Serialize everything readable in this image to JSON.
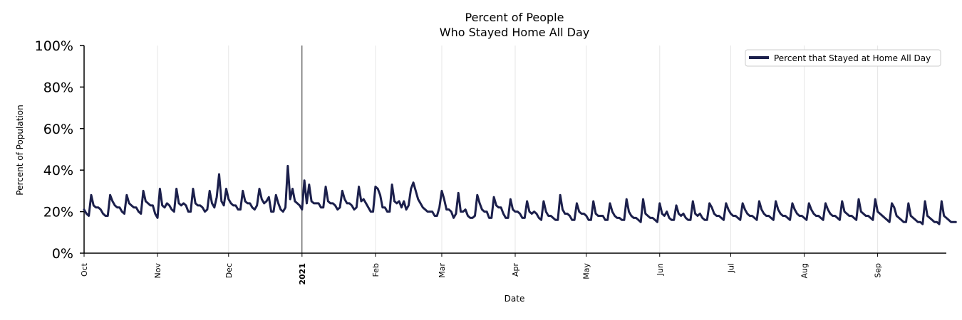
{
  "chart_data": {
    "type": "line",
    "title": [
      "Percent of People",
      "Who Stayed Home All Day"
    ],
    "xlabel": "Date",
    "ylabel": "Percent of Population",
    "ylim": [
      0,
      100
    ],
    "yticks": [
      0,
      20,
      40,
      60,
      80,
      100
    ],
    "ytick_labels": [
      "0%",
      "20%",
      "40%",
      "60%",
      "80%",
      "100%"
    ],
    "xlim_days": [
      0,
      364
    ],
    "xticks": [
      {
        "label": "Oct",
        "day": 0
      },
      {
        "label": "Nov",
        "day": 31
      },
      {
        "label": "Dec",
        "day": 61
      },
      {
        "label": "2021",
        "day": 92,
        "bold": true
      },
      {
        "label": "Feb",
        "day": 123
      },
      {
        "label": "Mar",
        "day": 151
      },
      {
        "label": "Apr",
        "day": 182
      },
      {
        "label": "May",
        "day": 212
      },
      {
        "label": "Jun",
        "day": 243
      },
      {
        "label": "Jul",
        "day": 273
      },
      {
        "label": "Aug",
        "day": 304
      },
      {
        "label": "Sep",
        "day": 335
      }
    ],
    "vline_day": 92,
    "grid": "vertical-at-month-ticks",
    "legend": {
      "position": "top-right",
      "entries": [
        "Percent that Stayed at Home All Day"
      ]
    },
    "series": [
      {
        "name": "Percent that Stayed at Home All Day",
        "color": "#1b1f4b",
        "start_date": "2020-10-01",
        "values": [
          21,
          19,
          18,
          28,
          23,
          22,
          22,
          21,
          19,
          18,
          18,
          28,
          25,
          23,
          22,
          22,
          20,
          19,
          28,
          24,
          23,
          22,
          22,
          20,
          19,
          30,
          25,
          24,
          23,
          23,
          19,
          17,
          31,
          23,
          22,
          24,
          23,
          21,
          20,
          31,
          24,
          23,
          24,
          23,
          20,
          20,
          31,
          24,
          23,
          23,
          22,
          20,
          21,
          30,
          24,
          22,
          27,
          38,
          25,
          23,
          31,
          26,
          24,
          23,
          23,
          21,
          21,
          30,
          25,
          24,
          24,
          22,
          21,
          23,
          31,
          26,
          24,
          25,
          27,
          20,
          20,
          28,
          24,
          21,
          20,
          22,
          42,
          26,
          31,
          25,
          24,
          23,
          21,
          35,
          24,
          33,
          25,
          24,
          24,
          24,
          22,
          22,
          32,
          25,
          24,
          24,
          23,
          21,
          22,
          30,
          26,
          24,
          24,
          23,
          21,
          22,
          32,
          25,
          26,
          24,
          22,
          20,
          20,
          32,
          31,
          28,
          22,
          22,
          20,
          20,
          33,
          25,
          24,
          25,
          22,
          25,
          21,
          23,
          31,
          34,
          30,
          26,
          24,
          22,
          21,
          20,
          20,
          20,
          18,
          18,
          22,
          30,
          26,
          21,
          21,
          20,
          17,
          19,
          29,
          20,
          20,
          21,
          18,
          17,
          17,
          18,
          28,
          24,
          21,
          20,
          20,
          17,
          17,
          27,
          23,
          22,
          22,
          19,
          17,
          17,
          26,
          21,
          20,
          20,
          19,
          17,
          17,
          25,
          20,
          19,
          20,
          19,
          17,
          16,
          25,
          20,
          18,
          18,
          17,
          16,
          16,
          28,
          21,
          19,
          19,
          18,
          16,
          16,
          24,
          20,
          19,
          19,
          18,
          16,
          16,
          25,
          19,
          18,
          18,
          18,
          16,
          16,
          24,
          20,
          18,
          17,
          17,
          16,
          16,
          26,
          20,
          18,
          17,
          17,
          16,
          15,
          26,
          19,
          18,
          17,
          17,
          16,
          15,
          24,
          19,
          18,
          20,
          17,
          16,
          16,
          23,
          19,
          18,
          19,
          17,
          16,
          16,
          25,
          19,
          18,
          19,
          17,
          16,
          16,
          24,
          22,
          19,
          18,
          18,
          17,
          16,
          24,
          21,
          19,
          18,
          18,
          17,
          16,
          24,
          21,
          19,
          18,
          18,
          17,
          16,
          25,
          21,
          19,
          18,
          18,
          17,
          16,
          25,
          21,
          19,
          18,
          18,
          17,
          16,
          24,
          21,
          19,
          18,
          18,
          17,
          16,
          24,
          21,
          19,
          18,
          18,
          17,
          16,
          24,
          21,
          19,
          18,
          18,
          17,
          16,
          25,
          20,
          19,
          18,
          18,
          17,
          16,
          26,
          20,
          19,
          18,
          18,
          17,
          16,
          26,
          20,
          19,
          18,
          17,
          16,
          15,
          24,
          22,
          18,
          17,
          16,
          15,
          15,
          24,
          18,
          17,
          16,
          15,
          15,
          14,
          25,
          18,
          17,
          16,
          15,
          15,
          14,
          25,
          18,
          17,
          16,
          15,
          15,
          15
        ]
      }
    ]
  }
}
